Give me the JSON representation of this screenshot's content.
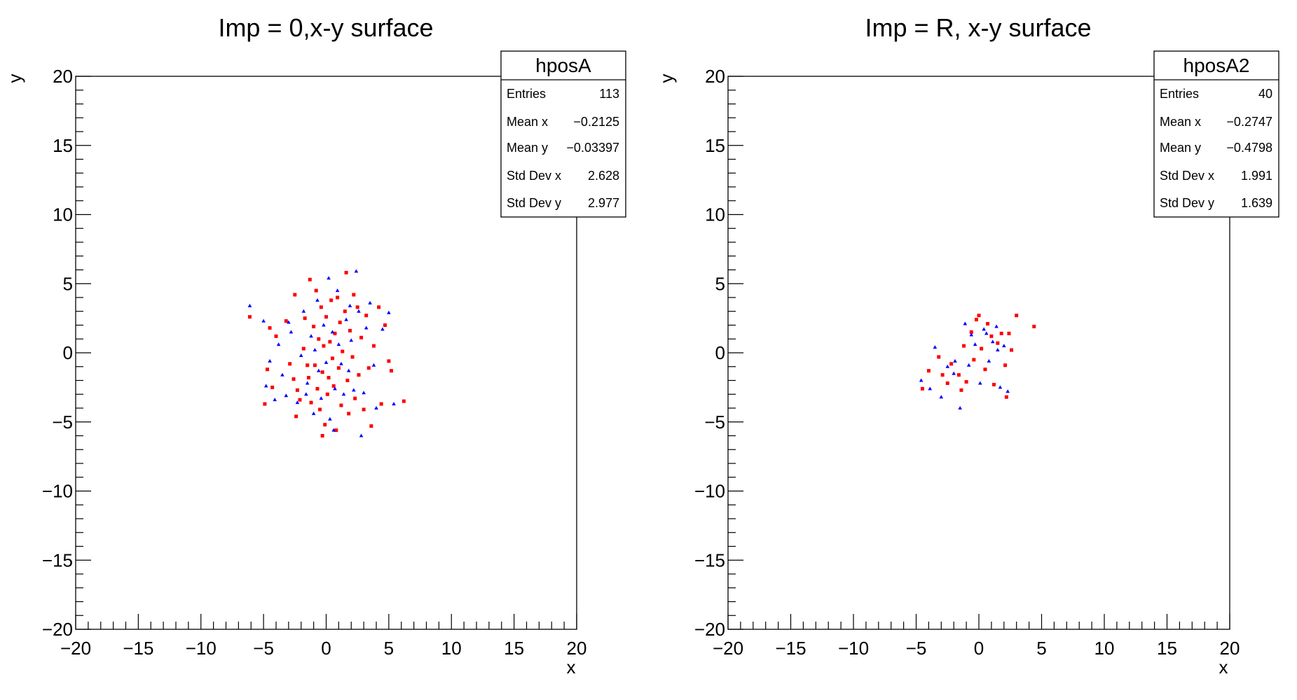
{
  "chart_data": [
    {
      "type": "scatter",
      "title": "Imp = 0,x-y surface",
      "xlabel": "x",
      "ylabel": "y",
      "xlim": [
        -20,
        20
      ],
      "ylim": [
        -20,
        20
      ],
      "xticks": [
        "−20",
        "−15",
        "−10",
        "−5",
        "0",
        "5",
        "10",
        "15",
        "20"
      ],
      "yticks": [
        "−20",
        "−15",
        "−10",
        "−5",
        "0",
        "5",
        "10",
        "15",
        "20"
      ],
      "stats": {
        "name": "hposA",
        "rows": [
          {
            "label": "Entries",
            "value": "113"
          },
          {
            "label": "Mean x",
            "value": "−0.2125"
          },
          {
            "label": "Mean y",
            "value": "−0.03397"
          },
          {
            "label": "Std Dev x",
            "value": "2.628"
          },
          {
            "label": "Std Dev y",
            "value": "2.977"
          }
        ]
      },
      "series": [
        {
          "color": "#ff0000",
          "points": [
            [
              -6.1,
              2.6
            ],
            [
              -4.5,
              1.8
            ],
            [
              -4.0,
              1.2
            ],
            [
              -4.7,
              -1.2
            ],
            [
              -4.9,
              -3.7
            ],
            [
              -4.3,
              -2.5
            ],
            [
              -3.2,
              2.3
            ],
            [
              -2.5,
              4.2
            ],
            [
              -2.6,
              -1.9
            ],
            [
              -2.4,
              -4.6
            ],
            [
              -2.3,
              -2.7
            ],
            [
              -2.1,
              -3.4
            ],
            [
              -1.8,
              0.3
            ],
            [
              -1.7,
              2.5
            ],
            [
              -1.5,
              -0.9
            ],
            [
              -1.4,
              -1.8
            ],
            [
              -1.3,
              5.3
            ],
            [
              -1.2,
              -3.6
            ],
            [
              -1.0,
              1.9
            ],
            [
              -0.9,
              -0.9
            ],
            [
              -0.8,
              4.5
            ],
            [
              -0.7,
              -2.6
            ],
            [
              -0.6,
              1.0
            ],
            [
              -0.5,
              -4.1
            ],
            [
              -0.4,
              3.3
            ],
            [
              -0.3,
              -1.4
            ],
            [
              -0.2,
              0.5
            ],
            [
              -0.1,
              -5.2
            ],
            [
              0.0,
              2.6
            ],
            [
              0.1,
              -3.0
            ],
            [
              0.2,
              -1.8
            ],
            [
              0.3,
              0.8
            ],
            [
              0.4,
              3.8
            ],
            [
              0.5,
              -0.4
            ],
            [
              0.6,
              -2.4
            ],
            [
              0.7,
              1.4
            ],
            [
              0.8,
              -5.6
            ],
            [
              0.9,
              4.0
            ],
            [
              1.0,
              -1.1
            ],
            [
              1.1,
              2.2
            ],
            [
              1.2,
              -3.8
            ],
            [
              1.3,
              0.1
            ],
            [
              1.5,
              3.0
            ],
            [
              1.6,
              5.8
            ],
            [
              1.7,
              -2.0
            ],
            [
              1.9,
              1.6
            ],
            [
              2.1,
              -0.3
            ],
            [
              2.2,
              4.2
            ],
            [
              2.3,
              -3.3
            ],
            [
              2.5,
              3.3
            ],
            [
              2.6,
              -1.6
            ],
            [
              2.8,
              1.1
            ],
            [
              3.0,
              -4.1
            ],
            [
              3.2,
              2.7
            ],
            [
              3.4,
              -1.1
            ],
            [
              3.6,
              -5.3
            ],
            [
              3.8,
              0.5
            ],
            [
              4.2,
              3.3
            ],
            [
              4.4,
              -3.7
            ],
            [
              4.7,
              2.0
            ],
            [
              5.0,
              -0.6
            ],
            [
              5.2,
              -1.3
            ],
            [
              6.2,
              -3.5
            ],
            [
              -0.3,
              -6.0
            ],
            [
              -2.9,
              -0.8
            ],
            [
              1.8,
              -4.4
            ]
          ]
        },
        {
          "color": "#0000ff",
          "points": [
            [
              -6.1,
              3.4
            ],
            [
              -5.0,
              2.3
            ],
            [
              -4.8,
              -2.4
            ],
            [
              -4.5,
              -0.6
            ],
            [
              -4.1,
              -3.4
            ],
            [
              -3.8,
              0.6
            ],
            [
              -3.5,
              -1.6
            ],
            [
              -3.2,
              -3.1
            ],
            [
              -2.8,
              1.5
            ],
            [
              -2.3,
              -3.6
            ],
            [
              -2.0,
              -0.2
            ],
            [
              -1.8,
              3.0
            ],
            [
              -1.5,
              -2.2
            ],
            [
              -1.2,
              1.2
            ],
            [
              -1.0,
              -4.4
            ],
            [
              -0.9,
              0.2
            ],
            [
              -0.7,
              3.8
            ],
            [
              -0.6,
              -1.3
            ],
            [
              -0.4,
              -3.3
            ],
            [
              -0.2,
              2.0
            ],
            [
              0.0,
              -0.7
            ],
            [
              0.2,
              5.4
            ],
            [
              0.3,
              -4.8
            ],
            [
              0.5,
              1.5
            ],
            [
              0.7,
              -2.6
            ],
            [
              0.9,
              4.5
            ],
            [
              1.0,
              0.6
            ],
            [
              1.2,
              -0.8
            ],
            [
              1.4,
              -3.0
            ],
            [
              1.6,
              2.4
            ],
            [
              1.8,
              -1.3
            ],
            [
              2.0,
              0.9
            ],
            [
              2.2,
              -2.7
            ],
            [
              2.4,
              5.9
            ],
            [
              2.6,
              3.0
            ],
            [
              2.8,
              -6.0
            ],
            [
              3.0,
              -2.9
            ],
            [
              3.2,
              1.8
            ],
            [
              3.5,
              3.6
            ],
            [
              3.8,
              -0.9
            ],
            [
              4.0,
              -4.0
            ],
            [
              4.5,
              1.7
            ],
            [
              5.0,
              2.9
            ],
            [
              5.4,
              -3.7
            ],
            [
              -3.0,
              2.2
            ],
            [
              0.6,
              -5.6
            ],
            [
              1.9,
              3.4
            ],
            [
              -1.6,
              -3.0
            ]
          ]
        }
      ]
    },
    {
      "type": "scatter",
      "title": "Imp = R, x-y surface",
      "xlabel": "x",
      "ylabel": "y",
      "xlim": [
        -20,
        20
      ],
      "ylim": [
        -20,
        20
      ],
      "xticks": [
        "−20",
        "−15",
        "−10",
        "−5",
        "0",
        "5",
        "10",
        "15",
        "20"
      ],
      "yticks": [
        "−20",
        "−15",
        "−10",
        "−5",
        "0",
        "5",
        "10",
        "15",
        "20"
      ],
      "stats": {
        "name": "hposA2",
        "rows": [
          {
            "label": "Entries",
            "value": "40"
          },
          {
            "label": "Mean x",
            "value": "−0.2747"
          },
          {
            "label": "Mean y",
            "value": "−0.4798"
          },
          {
            "label": "Std Dev x",
            "value": "1.991"
          },
          {
            "label": "Std Dev y",
            "value": "1.639"
          }
        ]
      },
      "series": [
        {
          "color": "#ff0000",
          "points": [
            [
              -4.5,
              -2.6
            ],
            [
              -4.0,
              -1.3
            ],
            [
              -3.2,
              -0.3
            ],
            [
              -2.9,
              -1.6
            ],
            [
              -2.5,
              -2.2
            ],
            [
              -2.2,
              -0.8
            ],
            [
              -1.6,
              -1.6
            ],
            [
              -1.2,
              0.5
            ],
            [
              -1.0,
              -2.1
            ],
            [
              -0.6,
              1.5
            ],
            [
              -0.4,
              -0.5
            ],
            [
              -0.2,
              2.4
            ],
            [
              0.0,
              2.7
            ],
            [
              0.2,
              0.3
            ],
            [
              0.5,
              -1.2
            ],
            [
              0.7,
              2.1
            ],
            [
              1.0,
              1.2
            ],
            [
              1.2,
              -2.3
            ],
            [
              1.5,
              0.7
            ],
            [
              1.8,
              1.4
            ],
            [
              2.1,
              -0.9
            ],
            [
              2.4,
              1.4
            ],
            [
              2.6,
              0.2
            ],
            [
              3.0,
              2.7
            ],
            [
              4.4,
              1.9
            ],
            [
              2.2,
              -3.2
            ],
            [
              -1.4,
              -2.7
            ]
          ]
        },
        {
          "color": "#0000ff",
          "points": [
            [
              -4.6,
              -2.0
            ],
            [
              -3.9,
              -2.6
            ],
            [
              -3.5,
              0.4
            ],
            [
              -3.0,
              -3.2
            ],
            [
              -2.5,
              -1.0
            ],
            [
              -2.0,
              -1.5
            ],
            [
              -1.5,
              -4.0
            ],
            [
              -1.1,
              2.1
            ],
            [
              -0.8,
              -0.9
            ],
            [
              -0.3,
              0.6
            ],
            [
              0.1,
              -2.2
            ],
            [
              0.4,
              1.7
            ],
            [
              0.8,
              -0.6
            ],
            [
              1.1,
              0.8
            ],
            [
              1.4,
              1.9
            ],
            [
              1.7,
              -2.5
            ],
            [
              2.0,
              0.5
            ],
            [
              2.3,
              -2.8
            ],
            [
              0.6,
              1.4
            ],
            [
              -1.9,
              -0.6
            ],
            [
              1.5,
              0.2
            ],
            [
              -0.6,
              1.3
            ]
          ]
        }
      ]
    }
  ]
}
